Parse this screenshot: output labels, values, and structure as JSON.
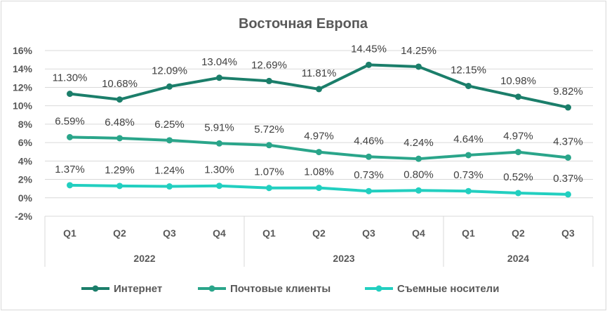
{
  "chart_data": {
    "type": "line",
    "title": "Восточная Европа",
    "categories": [
      "Q1",
      "Q2",
      "Q3",
      "Q4",
      "Q1",
      "Q2",
      "Q3",
      "Q4",
      "Q1",
      "Q2",
      "Q3"
    ],
    "years": [
      {
        "label": "2022",
        "span": 4
      },
      {
        "label": "2023",
        "span": 4
      },
      {
        "label": "2024",
        "span": 3
      }
    ],
    "y_ticks": [
      "16%",
      "14%",
      "12%",
      "10%",
      "8%",
      "6%",
      "4%",
      "2%",
      "0%",
      "-2%"
    ],
    "ylim": [
      -2,
      16
    ],
    "grid": true,
    "legend_position": "bottom",
    "series": [
      {
        "name": "Интернет",
        "color": "#1b7e6a",
        "values": [
          11.3,
          10.68,
          12.09,
          13.04,
          12.69,
          11.81,
          14.45,
          14.25,
          12.15,
          10.98,
          9.82
        ],
        "labels": [
          "11.30%",
          "10.68%",
          "12.09%",
          "13.04%",
          "12.69%",
          "11.81%",
          "14.45%",
          "14.25%",
          "12.15%",
          "10.98%",
          "9.82%"
        ]
      },
      {
        "name": "Почтовые клиенты",
        "color": "#2aa58a",
        "values": [
          6.59,
          6.48,
          6.25,
          5.91,
          5.72,
          4.97,
          4.46,
          4.24,
          4.64,
          4.97,
          4.37
        ],
        "labels": [
          "6.59%",
          "6.48%",
          "6.25%",
          "5.91%",
          "5.72%",
          "4.97%",
          "4.46%",
          "4.24%",
          "4.64%",
          "4.97%",
          "4.37%"
        ]
      },
      {
        "name": "Съемные носители",
        "color": "#22cfc0",
        "values": [
          1.37,
          1.29,
          1.24,
          1.3,
          1.07,
          1.08,
          0.73,
          0.8,
          0.73,
          0.52,
          0.37
        ],
        "labels": [
          "1.37%",
          "1.29%",
          "1.24%",
          "1.30%",
          "1.07%",
          "1.08%",
          "0.73%",
          "0.80%",
          "0.73%",
          "0.52%",
          "0.37%"
        ]
      }
    ]
  }
}
